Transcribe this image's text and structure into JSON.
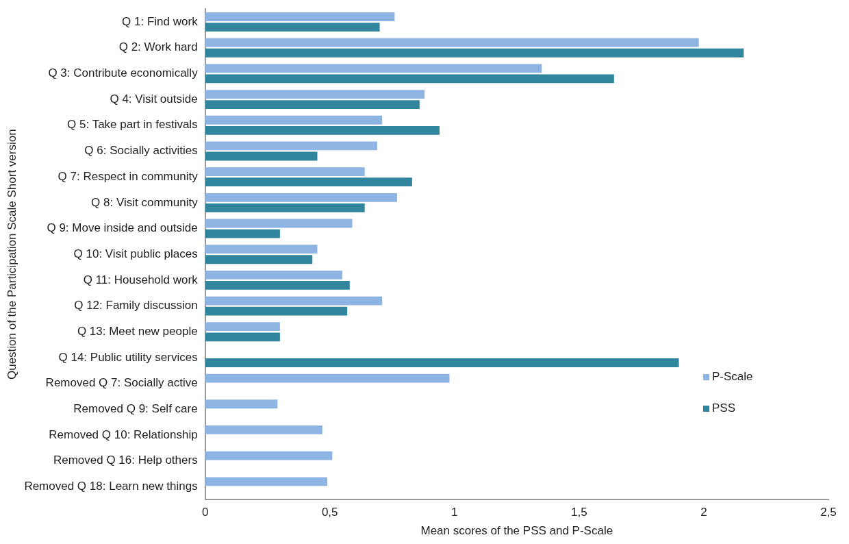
{
  "chart_data": {
    "type": "bar",
    "orientation": "horizontal",
    "xlabel": "Mean scores of the PSS and P-Scale",
    "ylabel": "Question of the Participation Scale Short version",
    "categories": [
      "Q 1: Find work",
      "Q 2: Work hard",
      "Q 3: Contribute economically",
      "Q 4: Visit outside",
      "Q 5: Take part in festivals",
      "Q 6: Socially activities",
      "Q 7: Respect in community",
      "Q 8: Visit community",
      "Q 9: Move inside and outside",
      "Q 10: Visit public places",
      "Q 11: Household work",
      "Q 12: Family discussion",
      "Q 13: Meet new people",
      "Q 14: Public utility services",
      "Removed Q 7: Socially active",
      "Removed Q 9: Self care",
      "Removed Q 10: Relationship",
      "Removed Q 16: Help others",
      "Removed Q 18: Learn new things"
    ],
    "series": [
      {
        "name": "P-Scale",
        "color": "#8eb4e3",
        "values": [
          0.76,
          1.98,
          1.35,
          0.88,
          0.71,
          0.69,
          0.64,
          0.77,
          0.59,
          0.45,
          0.55,
          0.71,
          0.3,
          null,
          0.98,
          0.29,
          0.47,
          0.51,
          0.49
        ]
      },
      {
        "name": "PSS",
        "color": "#31859c",
        "values": [
          0.7,
          2.16,
          1.64,
          0.86,
          0.94,
          0.45,
          0.83,
          0.64,
          0.3,
          0.43,
          0.58,
          0.57,
          0.3,
          1.9,
          null,
          null,
          null,
          null,
          null
        ]
      }
    ],
    "xlim": [
      0,
      2.5
    ],
    "xticks": [
      0,
      {
        "value": 0.5,
        "label": "0,5"
      },
      1,
      {
        "value": 1.5,
        "label": "1,5"
      },
      2,
      {
        "value": 2.5,
        "label": "2,5"
      }
    ],
    "grid": false,
    "legend": "right"
  }
}
